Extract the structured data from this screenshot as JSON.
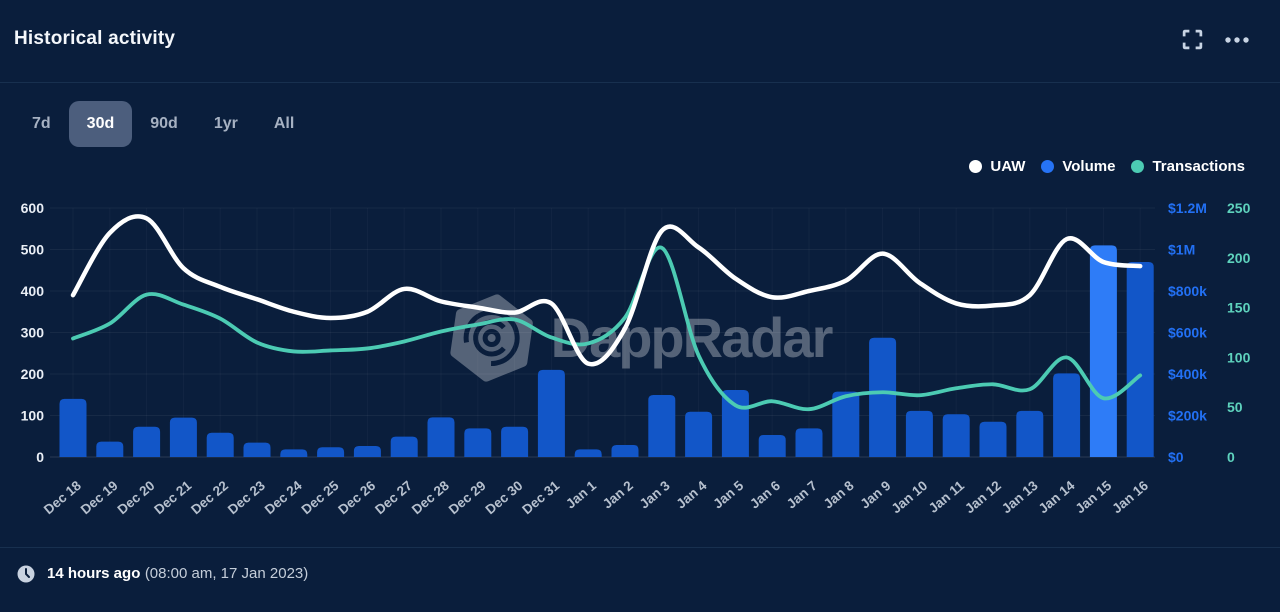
{
  "header": {
    "title": "Historical activity"
  },
  "tabs": [
    {
      "label": "7d",
      "active": false
    },
    {
      "label": "30d",
      "active": true
    },
    {
      "label": "90d",
      "active": false
    },
    {
      "label": "1yr",
      "active": false
    },
    {
      "label": "All",
      "active": false
    }
  ],
  "legend": [
    {
      "label": "UAW",
      "color": "#ffffff"
    },
    {
      "label": "Volume",
      "color": "#2673f5"
    },
    {
      "label": "Transactions",
      "color": "#4ccbb3"
    }
  ],
  "watermark": {
    "text": "DappRadar"
  },
  "footer": {
    "relative_time": "14 hours ago",
    "absolute_time": "(08:00 am, 17 Jan 2023)"
  },
  "chart_data": {
    "type": "combo",
    "title": "Historical activity",
    "categories": [
      "Dec 18",
      "Dec 19",
      "Dec 20",
      "Dec 21",
      "Dec 22",
      "Dec 23",
      "Dec 24",
      "Dec 25",
      "Dec 26",
      "Dec 27",
      "Dec 28",
      "Dec 29",
      "Dec 30",
      "Dec 31",
      "Jan 1",
      "Jan 2",
      "Jan 3",
      "Jan 4",
      "Jan 5",
      "Jan 6",
      "Jan 7",
      "Jan 8",
      "Jan 9",
      "Jan 10",
      "Jan 11",
      "Jan 12",
      "Jan 13",
      "Jan 14",
      "Jan 15",
      "Jan 16"
    ],
    "series": [
      {
        "name": "UAW",
        "type": "line",
        "axis": "left",
        "color": "#ffffff",
        "values": [
          390,
          540,
          575,
          455,
          410,
          380,
          350,
          335,
          350,
          405,
          375,
          360,
          348,
          370,
          225,
          310,
          545,
          505,
          430,
          385,
          400,
          425,
          490,
          420,
          370,
          365,
          390,
          525,
          470,
          460
        ]
      },
      {
        "name": "Volume",
        "type": "bar",
        "axis": "volume",
        "color": "#1256c8",
        "highlight_index": 28,
        "highlight_color": "#2e7cf7",
        "values": [
          280000,
          74000,
          146000,
          190000,
          117000,
          69000,
          37000,
          47000,
          53000,
          98000,
          191000,
          138000,
          146000,
          420000,
          37000,
          58000,
          299000,
          218000,
          323000,
          106000,
          138000,
          315000,
          575000,
          222000,
          206000,
          170000,
          222000,
          403000,
          1020000,
          940000
        ]
      },
      {
        "name": "Transactions",
        "type": "line",
        "axis": "transactions",
        "color": "#4ccbb3",
        "values": [
          119,
          134,
          163,
          153,
          139,
          115,
          106,
          107,
          109,
          116,
          126,
          133,
          138,
          120,
          114,
          140,
          210,
          102,
          52,
          56,
          48,
          61,
          65,
          62,
          69,
          73,
          68,
          100,
          59,
          82
        ]
      }
    ],
    "axes": {
      "left": {
        "range": [
          0,
          600
        ],
        "ticks": [
          {
            "v": 0,
            "label": "0"
          },
          {
            "v": 100,
            "label": "100"
          },
          {
            "v": 200,
            "label": "200"
          },
          {
            "v": 300,
            "label": "300"
          },
          {
            "v": 400,
            "label": "400"
          },
          {
            "v": 500,
            "label": "500"
          },
          {
            "v": 600,
            "label": "600"
          }
        ]
      },
      "volume": {
        "range": [
          0,
          1200000
        ],
        "ticks": [
          {
            "v": 0,
            "label": "$0"
          },
          {
            "v": 200000,
            "label": "$200k"
          },
          {
            "v": 400000,
            "label": "$400k"
          },
          {
            "v": 600000,
            "label": "$600k"
          },
          {
            "v": 800000,
            "label": "$800k"
          },
          {
            "v": 1000000,
            "label": "$1M"
          },
          {
            "v": 1200000,
            "label": "$1.2M"
          }
        ]
      },
      "transactions": {
        "range": [
          0,
          250
        ],
        "ticks": [
          {
            "v": 0,
            "label": "0"
          },
          {
            "v": 50,
            "label": "50"
          },
          {
            "v": 100,
            "label": "100"
          },
          {
            "v": 150,
            "label": "150"
          },
          {
            "v": 200,
            "label": "200"
          },
          {
            "v": 250,
            "label": "250"
          }
        ]
      }
    },
    "grid": true,
    "legend_position": "top-right"
  }
}
